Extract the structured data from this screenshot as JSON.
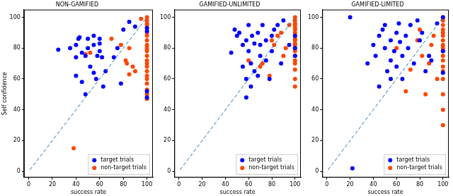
{
  "chart_data": [
    {
      "type": "scatter",
      "title": "NON-GAMIFIED",
      "xlabel": "success rate",
      "ylabel": "Self confidence",
      "xlim": [
        -4,
        105
      ],
      "ylim": [
        -4,
        105
      ],
      "xticks": [
        0,
        20,
        40,
        60,
        80,
        100
      ],
      "yticks": [
        0,
        20,
        40,
        60,
        80,
        100
      ],
      "grid": false,
      "legend": "lower right",
      "series": [
        {
          "name": "target trials",
          "color": "#0000ff",
          "marker": "circle",
          "x": [
            25,
            35,
            40,
            42,
            43,
            40,
            45,
            48,
            50,
            50,
            52,
            55,
            55,
            55,
            57,
            58,
            60,
            60,
            60,
            62,
            65,
            63,
            40,
            45,
            48,
            72,
            75,
            78,
            80,
            85,
            90,
            100,
            100,
            100,
            100
          ],
          "values": [
            79,
            80,
            82,
            86,
            87,
            74,
            77,
            75,
            86,
            80,
            68,
            88,
            82,
            64,
            60,
            75,
            86,
            83,
            78,
            74,
            65,
            55,
            62,
            58,
            50,
            74,
            80,
            57,
            92,
            97,
            94,
            91,
            93,
            52,
            48
          ]
        },
        {
          "name": "non-target trials",
          "color": "#ff4500",
          "marker": "circle",
          "x": [
            38,
            48,
            52,
            70,
            78,
            82,
            83,
            85,
            85,
            88,
            90,
            95,
            100,
            100,
            100,
            100,
            100,
            100,
            100,
            100,
            100,
            100,
            100,
            100,
            100,
            100,
            100,
            100,
            100,
            100,
            100,
            100,
            100,
            100
          ],
          "values": [
            15,
            76,
            77,
            86,
            82,
            72,
            70,
            63,
            80,
            68,
            65,
            99,
            100,
            98,
            96,
            95,
            93,
            90,
            88,
            85,
            82,
            80,
            78,
            75,
            72,
            70,
            68,
            65,
            62,
            60,
            57,
            53,
            50,
            47
          ]
        },
        {
          "type": "line",
          "line_style": "dashed",
          "color": "#1f77b4",
          "x": [
            1,
            100
          ],
          "values": [
            1,
            100
          ]
        }
      ]
    },
    {
      "type": "scatter",
      "title": "GAMIFIED-UNLIMITED",
      "xlabel": "success rate",
      "xlim": [
        -4,
        105
      ],
      "ylim": [
        -4,
        105
      ],
      "xticks": [
        0,
        20,
        40,
        60,
        80,
        100
      ],
      "yticks": [
        0,
        20,
        40,
        60,
        80,
        100
      ],
      "grid": false,
      "legend": "lower right",
      "series": [
        {
          "name": "target trials",
          "color": "#0000ff",
          "marker": "circle",
          "x": [
            45,
            48,
            50,
            52,
            55,
            55,
            58,
            58,
            60,
            60,
            62,
            63,
            65,
            65,
            68,
            70,
            70,
            72,
            75,
            75,
            78,
            80,
            80,
            82,
            85,
            88,
            90,
            95,
            100,
            100,
            100,
            58,
            62,
            68
          ],
          "values": [
            77,
            92,
            88,
            90,
            82,
            68,
            85,
            60,
            95,
            78,
            70,
            88,
            83,
            65,
            90,
            75,
            82,
            95,
            72,
            85,
            60,
            88,
            78,
            92,
            95,
            70,
            98,
            82,
            88,
            80,
            75,
            48,
            55,
            62
          ]
        },
        {
          "name": "non-target trials",
          "color": "#ff4500",
          "marker": "circle",
          "x": [
            60,
            70,
            72,
            78,
            80,
            82,
            85,
            88,
            90,
            92,
            95,
            100,
            100,
            100,
            100,
            100,
            100,
            100,
            100,
            100,
            100,
            100,
            100,
            100,
            100,
            100,
            100,
            100,
            100,
            100,
            100
          ],
          "values": [
            72,
            68,
            70,
            62,
            85,
            82,
            88,
            90,
            75,
            80,
            95,
            100,
            98,
            96,
            95,
            93,
            92,
            90,
            88,
            86,
            85,
            83,
            82,
            80,
            78,
            75,
            72,
            70,
            66,
            60,
            55
          ]
        },
        {
          "type": "line",
          "line_style": "dashed",
          "color": "#1f77b4",
          "x": [
            1,
            100
          ],
          "values": [
            1,
            100
          ]
        }
      ]
    },
    {
      "type": "scatter",
      "title": "GAMIFIED-LIMITED",
      "xlabel": "success rate",
      "xlim": [
        -4,
        105
      ],
      "ylim": [
        -4,
        105
      ],
      "xticks": [
        0,
        20,
        40,
        60,
        80,
        100
      ],
      "yticks": [
        0,
        20,
        40,
        60,
        80,
        100
      ],
      "grid": false,
      "legend": "lower right",
      "series": [
        {
          "name": "target trials",
          "color": "#0000ff",
          "marker": "circle",
          "x": [
            20,
            22,
            35,
            40,
            42,
            45,
            48,
            50,
            50,
            52,
            55,
            55,
            58,
            60,
            60,
            62,
            63,
            65,
            65,
            68,
            70,
            72,
            75,
            78,
            80,
            82,
            85,
            88,
            90,
            95,
            100,
            100,
            100,
            45,
            55
          ],
          "values": [
            100,
            2,
            70,
            82,
            75,
            88,
            92,
            95,
            80,
            65,
            85,
            72,
            78,
            90,
            68,
            96,
            84,
            75,
            60,
            88,
            80,
            95,
            70,
            98,
            85,
            90,
            65,
            75,
            72,
            96,
            100,
            78,
            64,
            55,
            60
          ]
        },
        {
          "name": "non-target trials",
          "color": "#ff4500",
          "marker": "circle",
          "x": [
            60,
            68,
            72,
            78,
            80,
            82,
            85,
            88,
            90,
            92,
            95,
            100,
            100,
            100,
            100,
            100,
            100,
            100,
            100,
            100,
            100,
            100,
            100,
            100,
            100,
            100,
            100,
            100,
            100
          ],
          "values": [
            80,
            52,
            66,
            85,
            92,
            75,
            50,
            70,
            82,
            88,
            60,
            100,
            98,
            95,
            92,
            90,
            88,
            85,
            82,
            80,
            78,
            75,
            72,
            68,
            65,
            60,
            50,
            40,
            30
          ]
        },
        {
          "type": "line",
          "line_style": "dashed",
          "color": "#1f77b4",
          "x": [
            1,
            100
          ],
          "values": [
            1,
            100
          ]
        }
      ]
    }
  ]
}
